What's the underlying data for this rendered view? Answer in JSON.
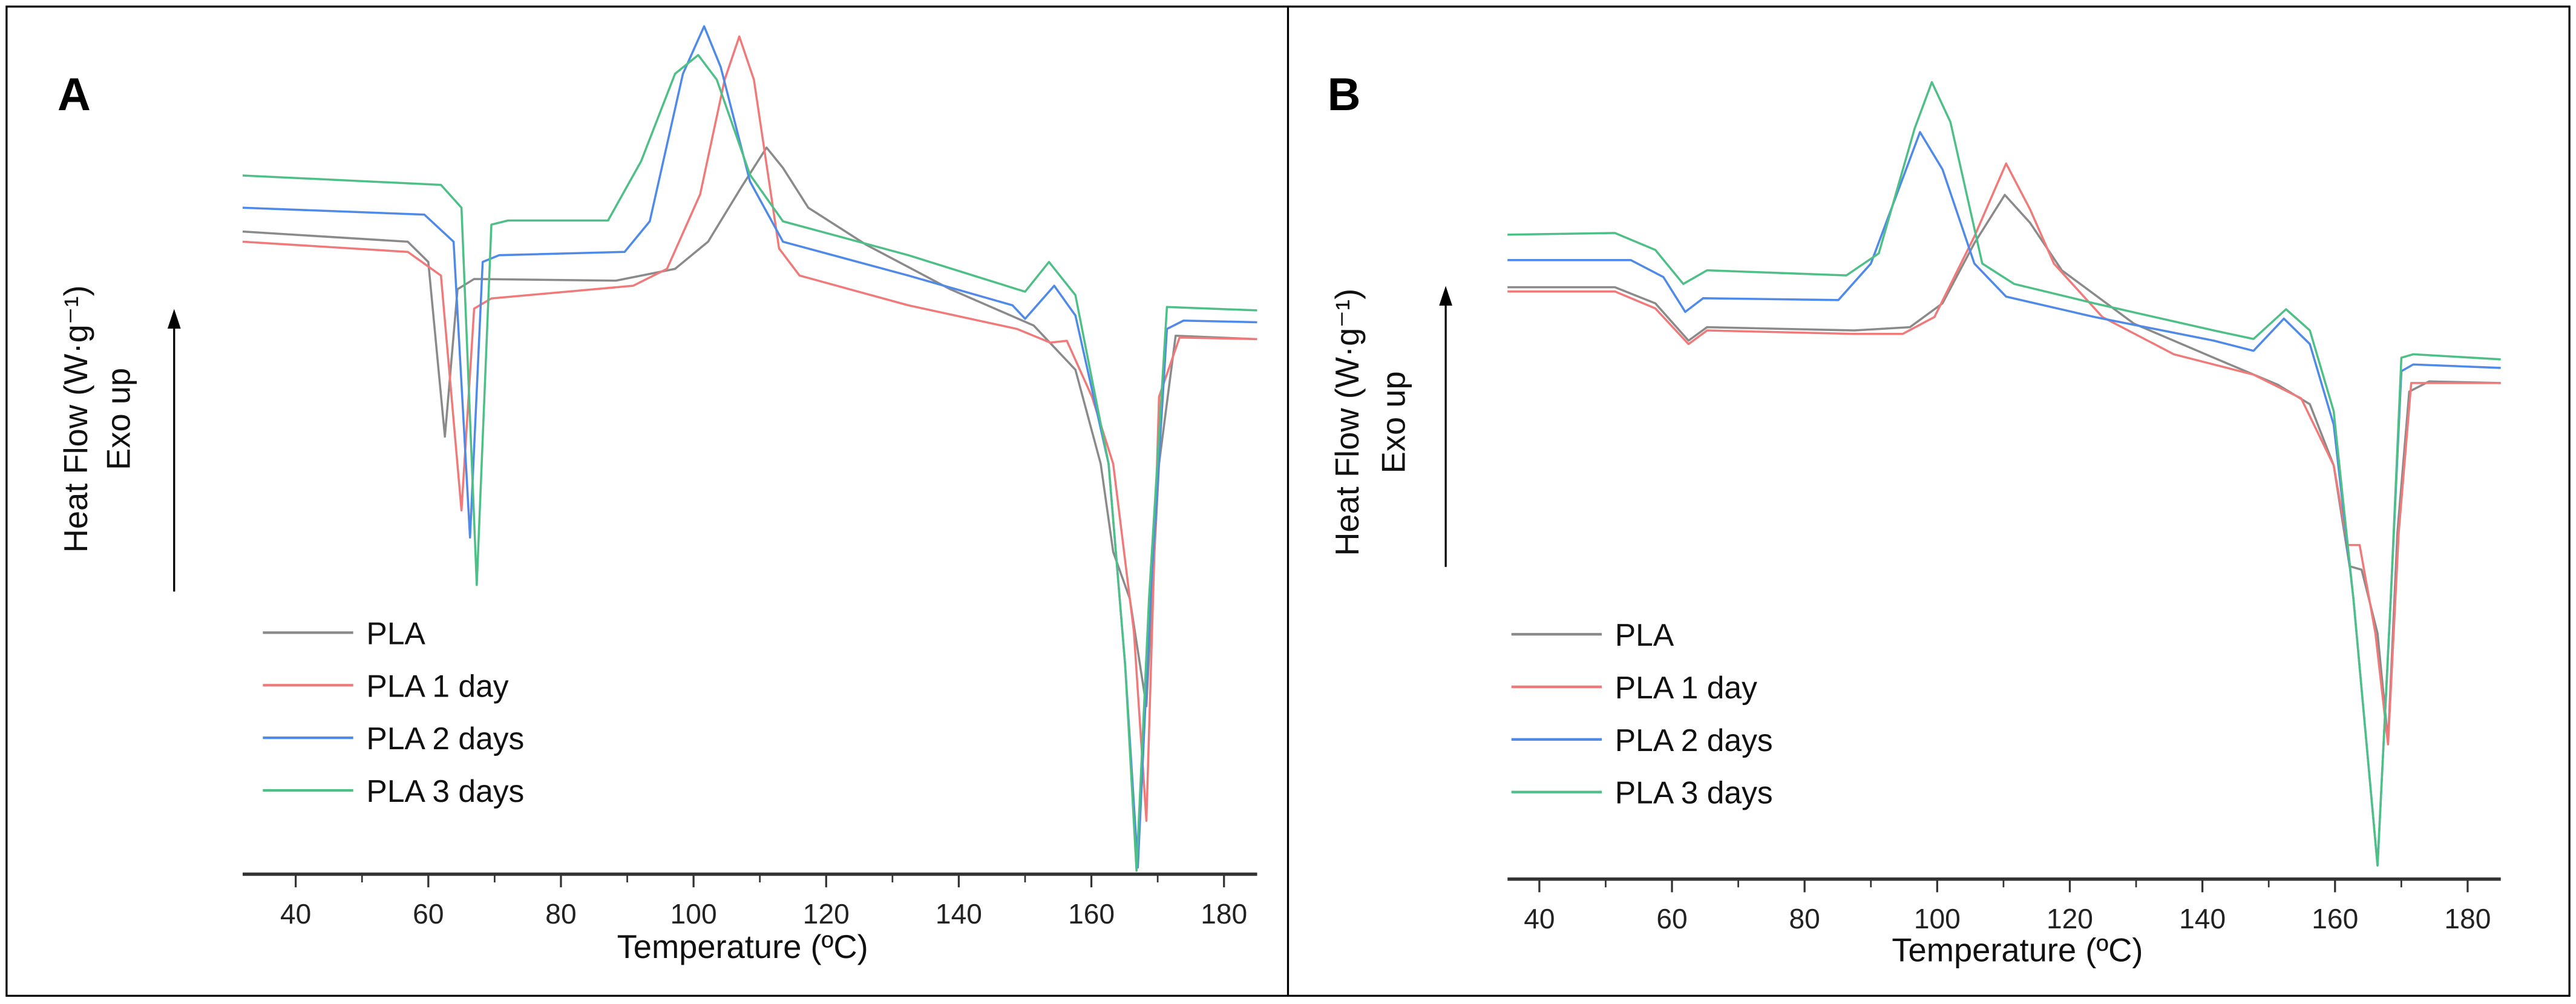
{
  "chart_data": [
    {
      "type": "line",
      "panel_label": "A",
      "xlabel": "Temperature (ºC)",
      "ylabel": "Heat Flow (W·g⁻¹)",
      "annotation": "Exo up",
      "xlim": [
        32,
        185
      ],
      "ylim": [
        0,
        100
      ],
      "y_units": "arbitrary (no y tick labels shown)",
      "xticks": [
        40,
        60,
        80,
        100,
        120,
        140,
        160,
        180
      ],
      "minor_xticks": [
        50,
        70,
        90,
        110,
        130,
        150,
        170
      ],
      "grid": false,
      "legend_position": "bottom-left",
      "series": [
        {
          "name": "PLA",
          "color": "#8a8a8a",
          "points": [
            [
              32,
              75.8
            ],
            [
              56.9,
              74.6
            ],
            [
              60,
              72.2
            ],
            [
              62.5,
              51.6
            ],
            [
              64.4,
              69
            ],
            [
              66.9,
              70.2
            ],
            [
              88.3,
              70
            ],
            [
              97.2,
              71.4
            ],
            [
              102.2,
              74.6
            ],
            [
              107.2,
              81
            ],
            [
              111,
              85.7
            ],
            [
              113.5,
              83.3
            ],
            [
              117.3,
              78.6
            ],
            [
              126.1,
              74.2
            ],
            [
              138.7,
              69
            ],
            [
              151.3,
              64.7
            ],
            [
              157.6,
              59.5
            ],
            [
              161.4,
              48.4
            ],
            [
              163.3,
              38
            ],
            [
              165.8,
              32.5
            ],
            [
              168.3,
              19.8
            ],
            [
              170.2,
              48.4
            ],
            [
              172.7,
              63.5
            ],
            [
              185,
              63.1
            ]
          ]
        },
        {
          "name": "PLA 1 day",
          "color": "#f07a7a",
          "points": [
            [
              32,
              74.6
            ],
            [
              56.9,
              73.4
            ],
            [
              61.9,
              70.6
            ],
            [
              65,
              42.9
            ],
            [
              66.9,
              66.7
            ],
            [
              69.5,
              67.9
            ],
            [
              90.9,
              69.4
            ],
            [
              96,
              71.4
            ],
            [
              101,
              80.2
            ],
            [
              104.7,
              93.7
            ],
            [
              106.9,
              98.8
            ],
            [
              109.1,
              93.7
            ],
            [
              112.9,
              73.8
            ],
            [
              116,
              70.6
            ],
            [
              132.4,
              67.1
            ],
            [
              148.8,
              64.3
            ],
            [
              153.8,
              62.7
            ],
            [
              156.3,
              62.9
            ],
            [
              160.1,
              56.3
            ],
            [
              163.3,
              48.4
            ],
            [
              166.4,
              28.6
            ],
            [
              168.3,
              6.3
            ],
            [
              170.2,
              56.3
            ],
            [
              173.3,
              63.3
            ],
            [
              185,
              63.1
            ]
          ]
        },
        {
          "name": "PLA 2 days",
          "color": "#4f8ae8",
          "points": [
            [
              32,
              78.6
            ],
            [
              59.4,
              77.8
            ],
            [
              63.8,
              74.6
            ],
            [
              66.3,
              39.7
            ],
            [
              68.2,
              72.2
            ],
            [
              70.7,
              73
            ],
            [
              89.6,
              73.4
            ],
            [
              93.4,
              77
            ],
            [
              98.4,
              94.4
            ],
            [
              101.6,
              100
            ],
            [
              104.1,
              95.2
            ],
            [
              108.5,
              81.7
            ],
            [
              113.5,
              74.6
            ],
            [
              132.4,
              70.6
            ],
            [
              148.1,
              67.1
            ],
            [
              150,
              65.5
            ],
            [
              154.4,
              69.4
            ],
            [
              157.6,
              65.9
            ],
            [
              162.6,
              48.4
            ],
            [
              165.1,
              24.6
            ],
            [
              167,
              0.8
            ],
            [
              168.9,
              32.5
            ],
            [
              171.4,
              64.3
            ],
            [
              173.9,
              65.3
            ],
            [
              185,
              65.1
            ]
          ]
        },
        {
          "name": "PLA 3 days",
          "color": "#4fbf88",
          "points": [
            [
              32,
              82.4
            ],
            [
              61.9,
              81.3
            ],
            [
              65,
              78.6
            ],
            [
              67.3,
              34.1
            ],
            [
              69.5,
              76.6
            ],
            [
              72,
              77.1
            ],
            [
              87.1,
              77.1
            ],
            [
              92.1,
              84.1
            ],
            [
              97.2,
              94.4
            ],
            [
              100.7,
              96.6
            ],
            [
              103.5,
              93.7
            ],
            [
              108.5,
              82.5
            ],
            [
              113.5,
              77
            ],
            [
              132.4,
              73
            ],
            [
              148.8,
              69
            ],
            [
              150,
              68.7
            ],
            [
              153.6,
              72.2
            ],
            [
              157.6,
              68.3
            ],
            [
              162.6,
              48.4
            ],
            [
              165.1,
              24.6
            ],
            [
              166.8,
              0.4
            ],
            [
              168.7,
              32.5
            ],
            [
              171.4,
              66.9
            ],
            [
              185,
              66.5
            ]
          ]
        }
      ]
    },
    {
      "type": "line",
      "panel_label": "B",
      "xlabel": "Temperature (ºC)",
      "ylabel": "Heat Flow (W·g⁻¹)",
      "annotation": "Exo up",
      "xlim": [
        35.2,
        185
      ],
      "ylim": [
        0,
        100
      ],
      "y_units": "arbitrary (no y tick labels shown)",
      "xticks": [
        40,
        60,
        80,
        100,
        120,
        140,
        160,
        180
      ],
      "minor_xticks": [
        50,
        70,
        90,
        110,
        130,
        150,
        170
      ],
      "grid": false,
      "legend_position": "bottom-left",
      "series": [
        {
          "name": "PLA",
          "color": "#8a8a8a",
          "points": [
            [
              35.2,
              69.8
            ],
            [
              51.4,
              69.8
            ],
            [
              57.5,
              67.9
            ],
            [
              62.5,
              63.5
            ],
            [
              65.3,
              65.1
            ],
            [
              87.5,
              64.7
            ],
            [
              95.9,
              65.1
            ],
            [
              100.8,
              67.9
            ],
            [
              105.6,
              75
            ],
            [
              110.2,
              80.7
            ],
            [
              114,
              77.4
            ],
            [
              118.8,
              71.8
            ],
            [
              129.7,
              65.5
            ],
            [
              141.7,
              61.5
            ],
            [
              151.4,
              58.3
            ],
            [
              156.2,
              56
            ],
            [
              159.8,
              48.8
            ],
            [
              162.2,
              36.9
            ],
            [
              164,
              36.5
            ],
            [
              166.4,
              29
            ],
            [
              168,
              16.3
            ],
            [
              169.4,
              40.9
            ],
            [
              171.2,
              57.5
            ],
            [
              174.2,
              58.7
            ],
            [
              185,
              58.5
            ]
          ]
        },
        {
          "name": "PLA 1 day",
          "color": "#f07a7a",
          "points": [
            [
              35.2,
              69.3
            ],
            [
              51.4,
              69.3
            ],
            [
              57.5,
              67.3
            ],
            [
              62.5,
              63.1
            ],
            [
              65.3,
              64.7
            ],
            [
              87.5,
              64.3
            ],
            [
              94.8,
              64.3
            ],
            [
              99.6,
              66.3
            ],
            [
              105.6,
              75.8
            ],
            [
              110.4,
              84.4
            ],
            [
              114,
              79
            ],
            [
              117.6,
              72.6
            ],
            [
              124.9,
              66.3
            ],
            [
              135.7,
              61.9
            ],
            [
              147.7,
              59.5
            ],
            [
              154.9,
              56.7
            ],
            [
              159.8,
              48.8
            ],
            [
              161.9,
              39.4
            ],
            [
              163.7,
              39.4
            ],
            [
              166.1,
              29
            ],
            [
              168,
              15.9
            ],
            [
              169.6,
              40.9
            ],
            [
              171.5,
              58.5
            ],
            [
              185,
              58.5
            ]
          ]
        },
        {
          "name": "PLA 2 days",
          "color": "#4f8ae8",
          "points": [
            [
              35.2,
              73
            ],
            [
              53.8,
              73
            ],
            [
              58.7,
              71
            ],
            [
              62,
              66.9
            ],
            [
              64.7,
              68.5
            ],
            [
              85.1,
              68.3
            ],
            [
              90,
              72.6
            ],
            [
              97.4,
              88.1
            ],
            [
              100.8,
              83.7
            ],
            [
              105.6,
              72.6
            ],
            [
              110.4,
              68.7
            ],
            [
              123.7,
              66.3
            ],
            [
              141.7,
              63.5
            ],
            [
              147.7,
              62.3
            ],
            [
              152.3,
              66.1
            ],
            [
              156.2,
              63.1
            ],
            [
              159.8,
              53.6
            ],
            [
              162.8,
              32.9
            ],
            [
              166.4,
              1.6
            ],
            [
              168.4,
              32.9
            ],
            [
              170,
              59.9
            ],
            [
              171.8,
              60.7
            ],
            [
              185,
              60.3
            ]
          ]
        },
        {
          "name": "PLA 3 days",
          "color": "#4fbf88",
          "points": [
            [
              35.2,
              76
            ],
            [
              51.4,
              76.2
            ],
            [
              57.5,
              74.2
            ],
            [
              61.7,
              70.2
            ],
            [
              65.3,
              71.8
            ],
            [
              86.3,
              71.2
            ],
            [
              91.2,
              73.8
            ],
            [
              96.6,
              88.5
            ],
            [
              99.2,
              94
            ],
            [
              102,
              89.3
            ],
            [
              106.8,
              72.6
            ],
            [
              111.6,
              70.2
            ],
            [
              123.7,
              67.9
            ],
            [
              141.7,
              64.7
            ],
            [
              147.7,
              63.7
            ],
            [
              152.6,
              67.2
            ],
            [
              156.2,
              64.7
            ],
            [
              159.8,
              55.2
            ],
            [
              162.8,
              32.9
            ],
            [
              166.4,
              1.6
            ],
            [
              168.4,
              32.9
            ],
            [
              170,
              61.5
            ],
            [
              171.8,
              61.9
            ],
            [
              185,
              61.3
            ]
          ]
        }
      ]
    }
  ]
}
